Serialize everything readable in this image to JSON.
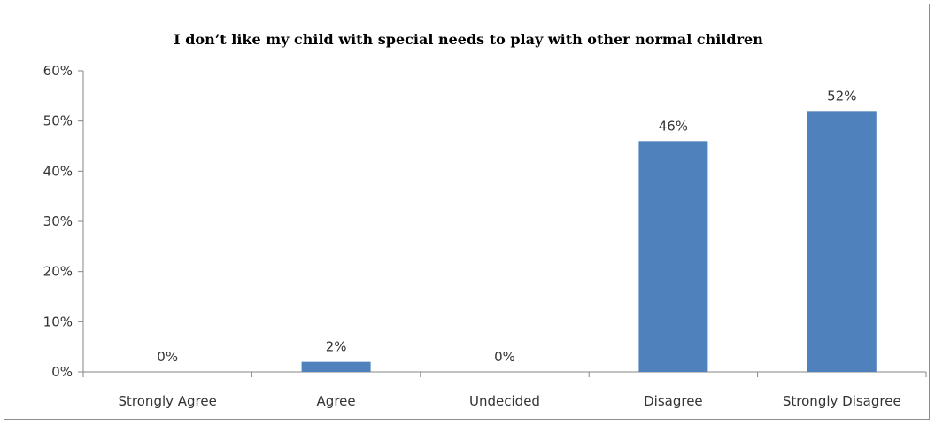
{
  "chart_data": {
    "type": "bar",
    "title": "I don’t like my child with special needs to play with other normal children",
    "categories": [
      "Strongly Agree",
      "Agree",
      "Undecided",
      "Disagree",
      "Strongly Disagree"
    ],
    "values": [
      0,
      2,
      0,
      46,
      52
    ],
    "value_labels": [
      "0%",
      "2%",
      "0%",
      "46%",
      "52%"
    ],
    "y_ticks": [
      "0%",
      "10%",
      "20%",
      "30%",
      "40%",
      "50%",
      "60%"
    ],
    "ylim": [
      0,
      60
    ],
    "grid": false,
    "legend": "none",
    "bar_color": "#4f81bd"
  }
}
